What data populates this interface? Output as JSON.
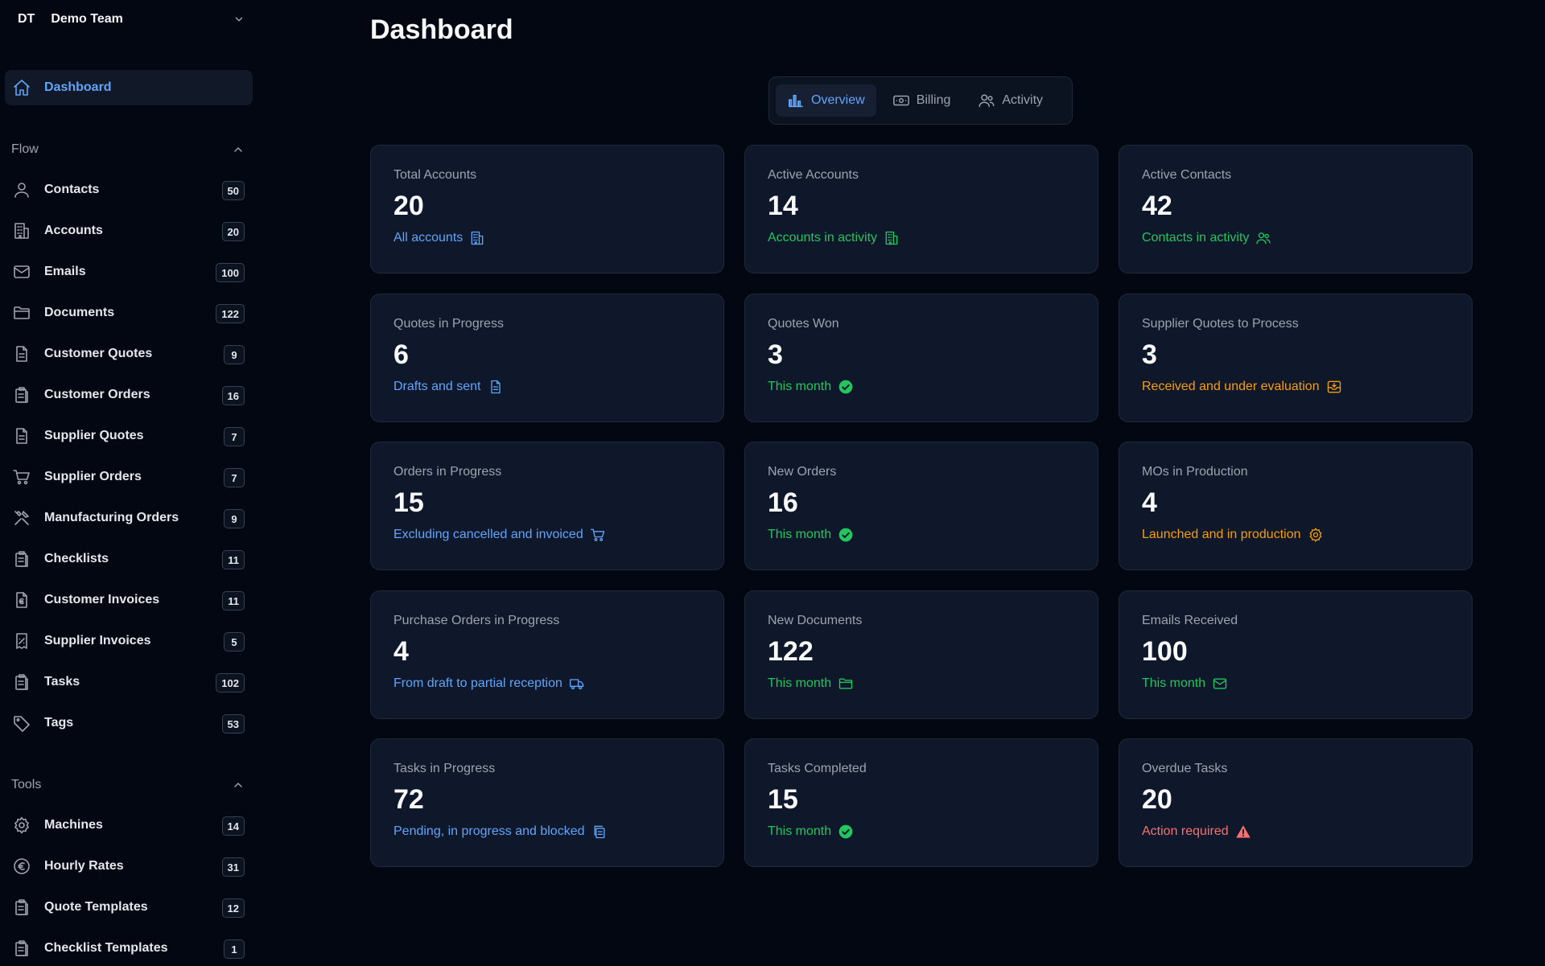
{
  "team": {
    "initials": "DT",
    "name": "Demo Team"
  },
  "nav": {
    "dashboard": "Dashboard",
    "flow_title": "Flow",
    "flow": [
      {
        "label": "Contacts",
        "count": "50",
        "icon": "user-icon"
      },
      {
        "label": "Accounts",
        "count": "20",
        "icon": "building-icon"
      },
      {
        "label": "Emails",
        "count": "100",
        "icon": "mail-icon"
      },
      {
        "label": "Documents",
        "count": "122",
        "icon": "folder-icon"
      },
      {
        "label": "Customer Quotes",
        "count": "9",
        "icon": "document-icon"
      },
      {
        "label": "Customer Orders",
        "count": "16",
        "icon": "clipboard-icon"
      },
      {
        "label": "Supplier Quotes",
        "count": "7",
        "icon": "document-icon"
      },
      {
        "label": "Supplier Orders",
        "count": "7",
        "icon": "cart-icon"
      },
      {
        "label": "Manufacturing Orders",
        "count": "9",
        "icon": "tools-icon"
      },
      {
        "label": "Checklists",
        "count": "11",
        "icon": "clipboard-icon"
      },
      {
        "label": "Customer Invoices",
        "count": "11",
        "icon": "euro-document-icon"
      },
      {
        "label": "Supplier Invoices",
        "count": "5",
        "icon": "receipt-icon"
      },
      {
        "label": "Tasks",
        "count": "102",
        "icon": "clipboard-icon"
      },
      {
        "label": "Tags",
        "count": "53",
        "icon": "tag-icon"
      }
    ],
    "tools_title": "Tools",
    "tools": [
      {
        "label": "Machines",
        "count": "14",
        "icon": "gear-icon"
      },
      {
        "label": "Hourly Rates",
        "count": "31",
        "icon": "euro-icon"
      },
      {
        "label": "Quote Templates",
        "count": "12",
        "icon": "clipboard-icon"
      },
      {
        "label": "Checklist Templates",
        "count": "1",
        "icon": "clipboard-icon"
      }
    ]
  },
  "page": {
    "title": "Dashboard"
  },
  "tabs": [
    {
      "label": "Overview",
      "icon": "bar-chart-icon",
      "active": true
    },
    {
      "label": "Billing",
      "icon": "banknote-icon",
      "active": false
    },
    {
      "label": "Activity",
      "icon": "users-icon",
      "active": false
    }
  ],
  "cards": [
    {
      "title": "Total Accounts",
      "value": "20",
      "sub": "All accounts",
      "color": "blue",
      "icon": "building-icon"
    },
    {
      "title": "Active Accounts",
      "value": "14",
      "sub": "Accounts in activity",
      "color": "green",
      "icon": "building-icon"
    },
    {
      "title": "Active Contacts",
      "value": "42",
      "sub": "Contacts in activity",
      "color": "green",
      "icon": "users-icon"
    },
    {
      "title": "Quotes in Progress",
      "value": "6",
      "sub": "Drafts and sent",
      "color": "blue",
      "icon": "document-icon"
    },
    {
      "title": "Quotes Won",
      "value": "3",
      "sub": "This month",
      "color": "green",
      "icon": "check-circle-icon"
    },
    {
      "title": "Supplier Quotes to Process",
      "value": "3",
      "sub": "Received and under evaluation",
      "color": "amber",
      "icon": "inbox-icon"
    },
    {
      "title": "Orders in Progress",
      "value": "15",
      "sub": "Excluding cancelled and invoiced",
      "color": "blue",
      "icon": "cart-icon"
    },
    {
      "title": "New Orders",
      "value": "16",
      "sub": "This month",
      "color": "green",
      "icon": "check-circle-icon"
    },
    {
      "title": "MOs in Production",
      "value": "4",
      "sub": "Launched and in production",
      "color": "amber",
      "icon": "gear-icon"
    },
    {
      "title": "Purchase Orders in Progress",
      "value": "4",
      "sub": "From draft to partial reception",
      "color": "blue",
      "icon": "truck-icon"
    },
    {
      "title": "New Documents",
      "value": "122",
      "sub": "This month",
      "color": "green",
      "icon": "folder-icon"
    },
    {
      "title": "Emails Received",
      "value": "100",
      "sub": "This month",
      "color": "green",
      "icon": "mail-icon"
    },
    {
      "title": "Tasks in Progress",
      "value": "72",
      "sub": "Pending, in progress and blocked",
      "color": "blue",
      "icon": "copy-icon"
    },
    {
      "title": "Tasks Completed",
      "value": "15",
      "sub": "This month",
      "color": "green",
      "icon": "check-circle-icon"
    },
    {
      "title": "Overdue Tasks",
      "value": "20",
      "sub": "Action required",
      "color": "red",
      "icon": "warning-icon"
    }
  ],
  "colors": {
    "blue": "#60a5fa",
    "green": "#22c55e",
    "amber": "#f59e0b",
    "red": "#f87171"
  }
}
